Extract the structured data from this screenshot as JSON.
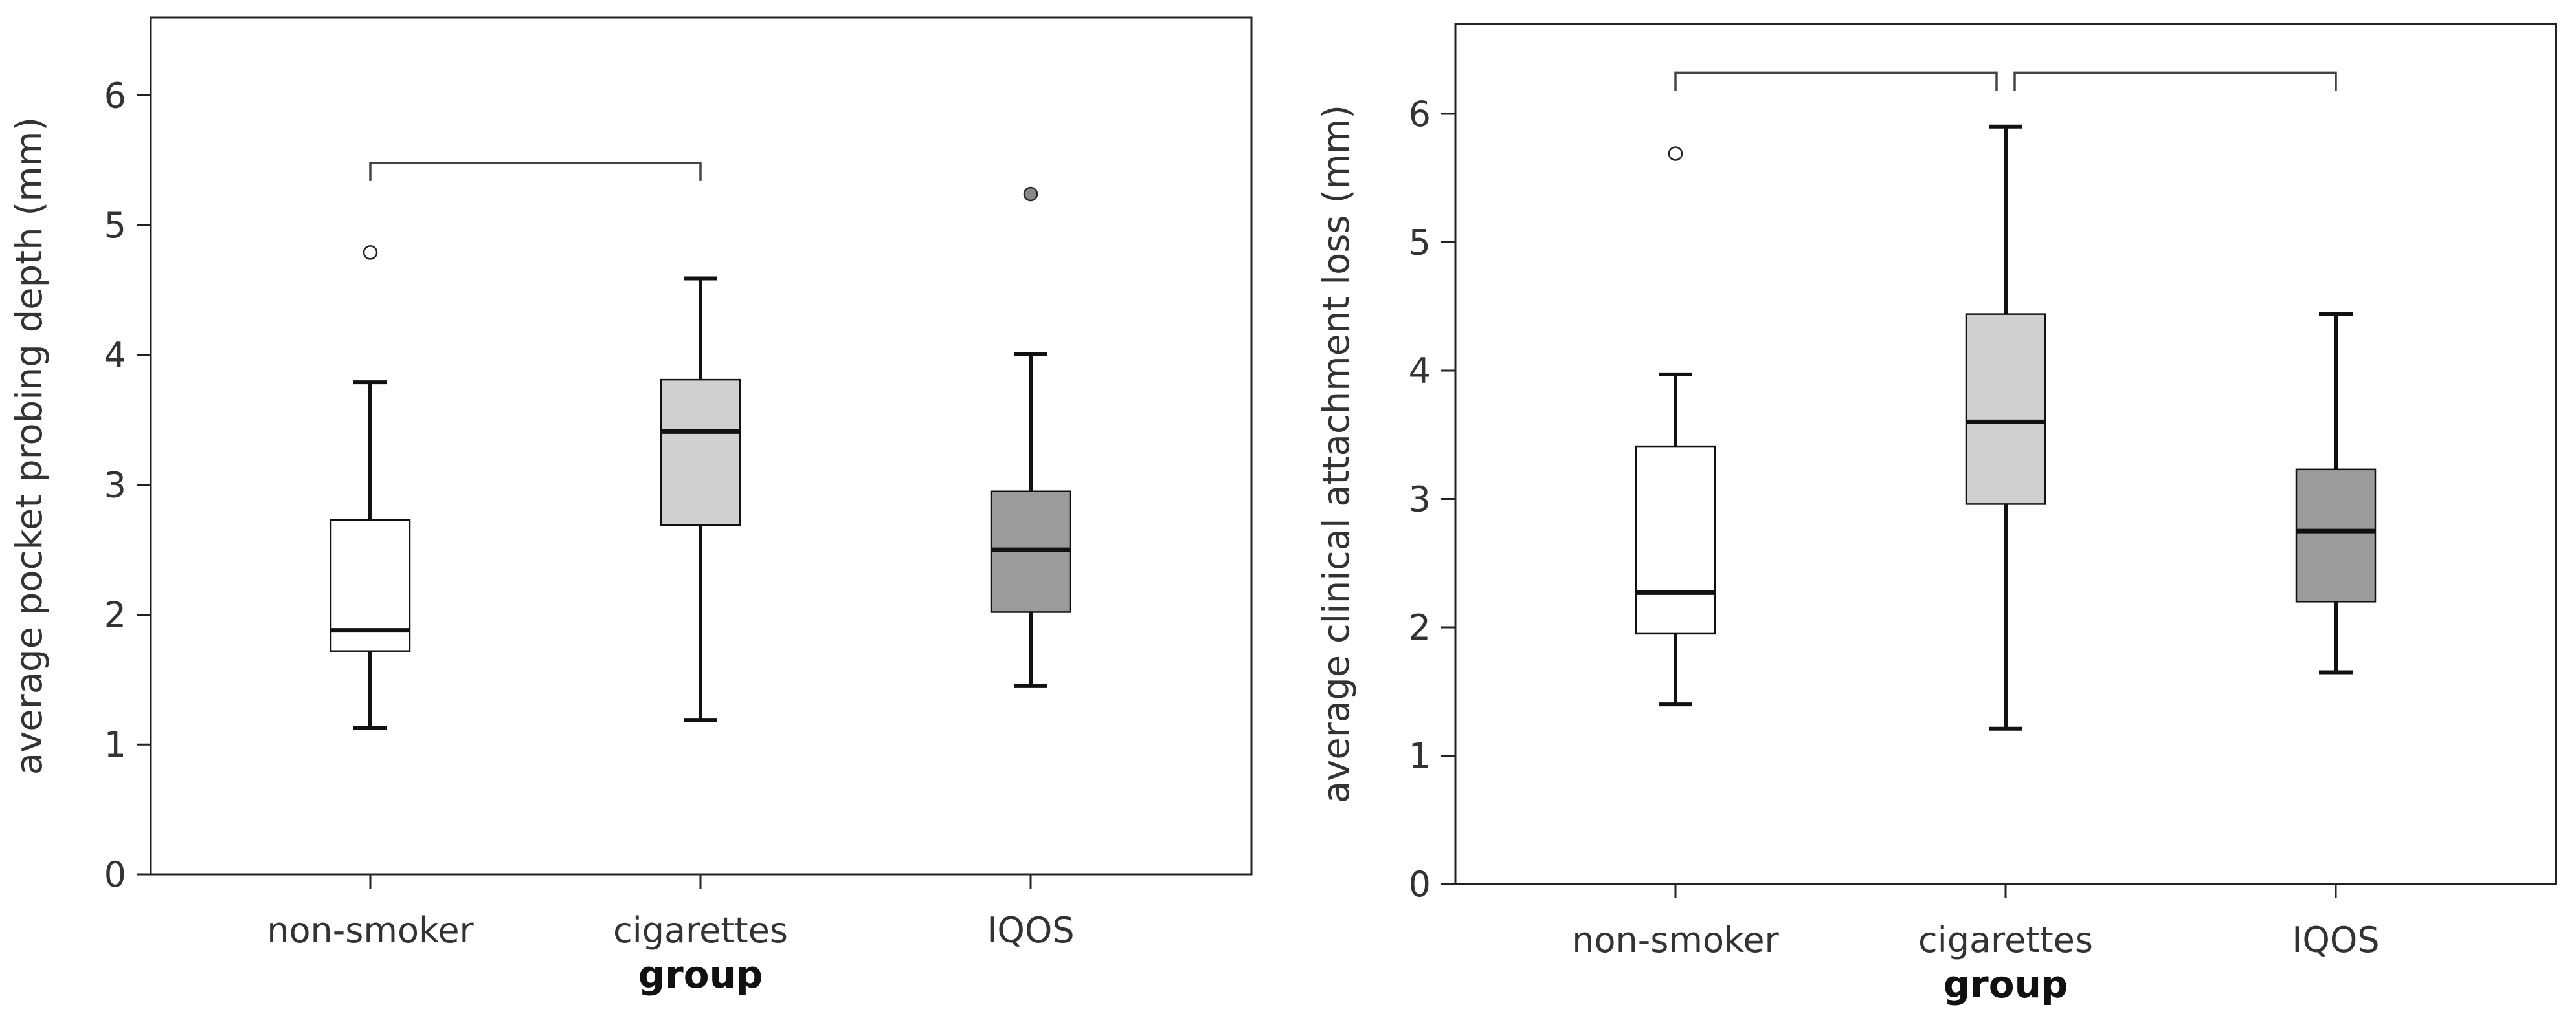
{
  "chart_data": [
    {
      "type": "box",
      "title": "",
      "xlabel": "group",
      "ylabel": "average pocket probing depth (mm)",
      "ylim": [
        0,
        6.6
      ],
      "yticks": [
        0,
        1,
        2,
        3,
        4,
        5,
        6
      ],
      "categories": [
        "non-smoker",
        "cigarettes",
        "IQOS"
      ],
      "boxes": [
        {
          "category": "non-smoker",
          "whisker_low": 1.13,
          "q1": 1.72,
          "median": 1.88,
          "q3": 2.73,
          "whisker_high": 3.79,
          "outliers": [
            4.79
          ],
          "fill": "#ffffff"
        },
        {
          "category": "cigarettes",
          "whisker_low": 1.19,
          "q1": 2.69,
          "median": 3.41,
          "q3": 3.81,
          "whisker_high": 4.59,
          "outliers": [],
          "fill": "#d0d0d0"
        },
        {
          "category": "IQOS",
          "whisker_low": 1.45,
          "q1": 2.02,
          "median": 2.5,
          "q3": 2.95,
          "whisker_high": 4.01,
          "outliers": [
            5.24
          ],
          "fill": "#9b9b9b"
        }
      ],
      "brackets": [
        {
          "from": "non-smoker",
          "to": "cigarettes",
          "y": 5.48
        }
      ],
      "grid": false
    },
    {
      "type": "box",
      "title": "",
      "xlabel": "group",
      "ylabel": "average clinical attachment loss (mm)",
      "ylim": [
        0,
        6.7
      ],
      "yticks": [
        0,
        1,
        2,
        3,
        4,
        5,
        6
      ],
      "categories": [
        "non-smoker",
        "cigarettes",
        "IQOS"
      ],
      "boxes": [
        {
          "category": "non-smoker",
          "whisker_low": 1.4,
          "q1": 1.95,
          "median": 2.27,
          "q3": 3.41,
          "whisker_high": 3.97,
          "outliers": [
            5.69
          ],
          "fill": "#ffffff"
        },
        {
          "category": "cigarettes",
          "whisker_low": 1.21,
          "q1": 2.96,
          "median": 3.6,
          "q3": 4.44,
          "whisker_high": 5.9,
          "outliers": [],
          "fill": "#d0d0d0"
        },
        {
          "category": "IQOS",
          "whisker_low": 1.65,
          "q1": 2.2,
          "median": 2.75,
          "q3": 3.23,
          "whisker_high": 4.44,
          "outliers": [],
          "fill": "#9b9b9b"
        }
      ],
      "brackets": [
        {
          "from": "non-smoker",
          "to": "cigarettes",
          "y": 6.32
        },
        {
          "from": "cigarettes",
          "to": "IQOS",
          "y": 6.32
        }
      ],
      "grid": false
    }
  ]
}
